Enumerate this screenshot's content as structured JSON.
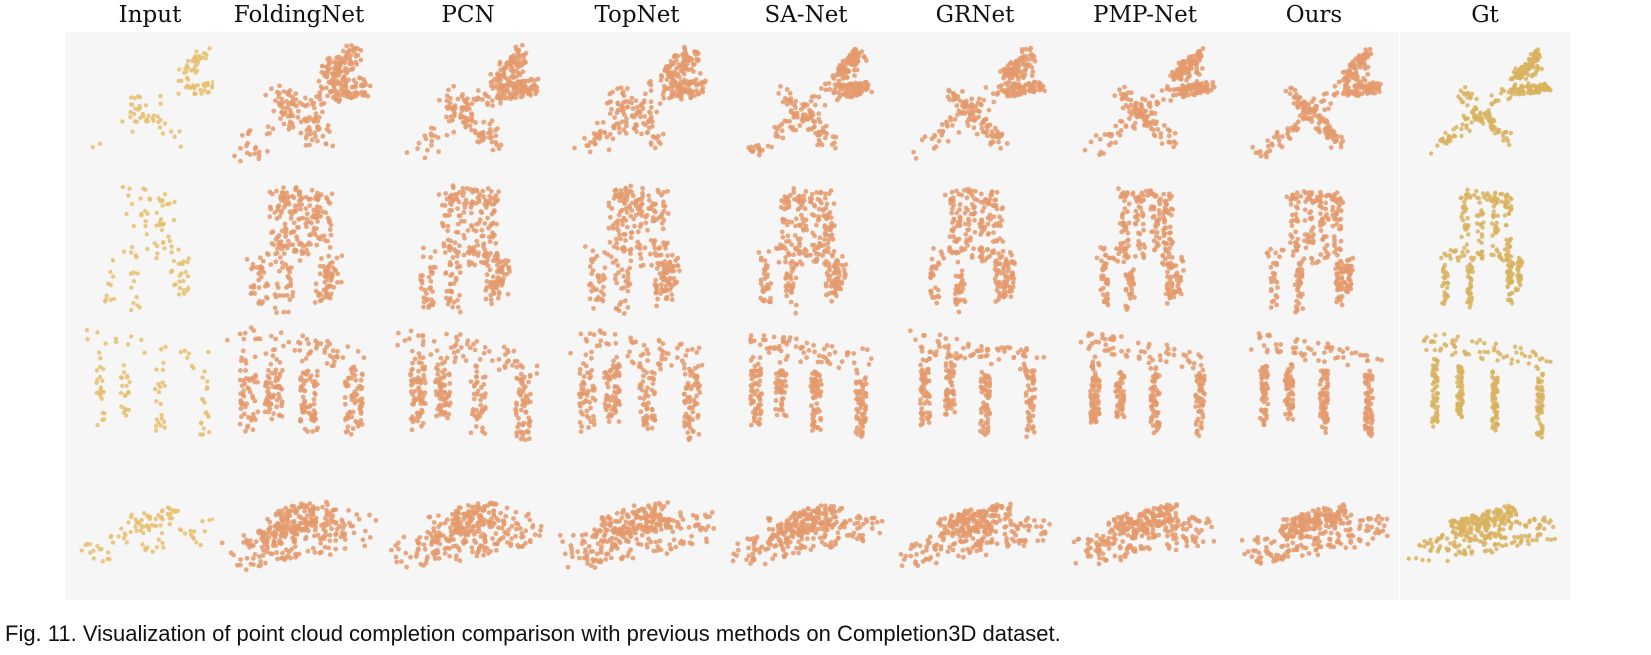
{
  "figure": {
    "columns": [
      "Input",
      "FoldingNet",
      "PCN",
      "TopNet",
      "SA-Net",
      "GRNet",
      "PMP-Net",
      "Ours",
      "Gt"
    ],
    "rows": [
      "airplane",
      "chair",
      "table",
      "car"
    ],
    "colors": {
      "input": "#e8c070",
      "prediction": "#e49a6c",
      "ground_truth": "#d9b35f",
      "background": "#f6f6f6"
    }
  },
  "caption": "Fig. 11. Visualization of point cloud completion comparison with previous methods on Completion3D dataset."
}
